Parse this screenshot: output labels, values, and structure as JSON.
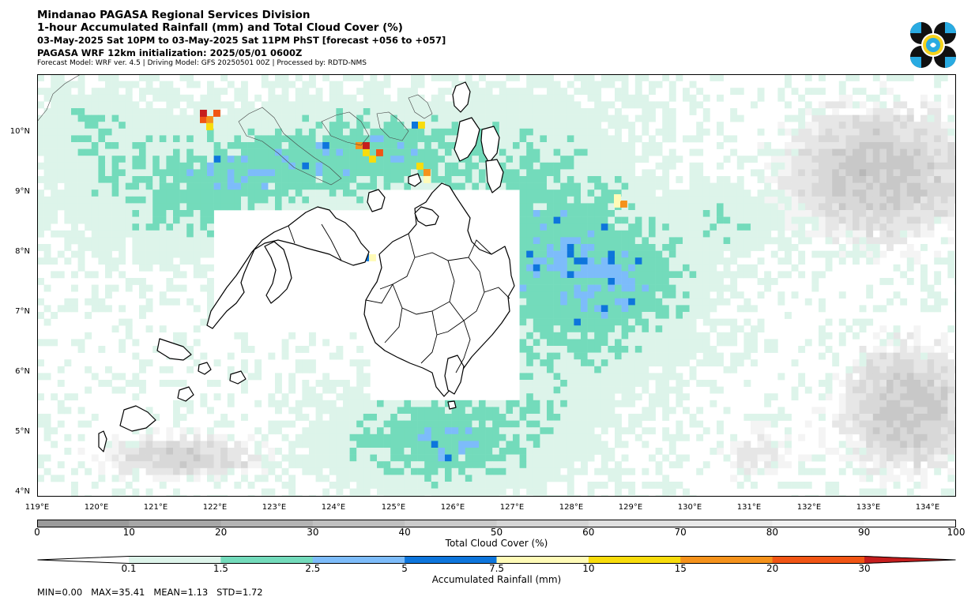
{
  "header": {
    "line1": "Mindanao PAGASA Regional Services Division",
    "line2": "1-hour Accumulated Rainfall (mm) and Total Cloud Cover (%)",
    "line3": "03-May-2025 Sat 10PM to 03-May-2025 Sat 11PM PhST [forecast +056 to +057]",
    "line4": "PAGASA WRF 12km initialization: 2025/05/01 0600Z",
    "line5": "Forecast Model: WRF ver. 4.5 | Driving Model: GFS 20250501 00Z | Processed by: RDTD-NMS"
  },
  "map": {
    "lat_labels": [
      "10°N",
      "9°N",
      "8°N",
      "7°N",
      "6°N",
      "5°N",
      "4°N"
    ],
    "lon_labels": [
      "119°E",
      "120°E",
      "121°E",
      "122°E",
      "123°E",
      "124°E",
      "125°E",
      "126°E",
      "127°E",
      "128°E",
      "129°E",
      "130°E",
      "131°E",
      "132°E",
      "133°E",
      "134°E"
    ],
    "extent": {
      "lon_min": 119.0,
      "lon_max": 134.48,
      "lat_min": 3.9,
      "lat_max": 11.0
    }
  },
  "cloud_colorbar": {
    "title": "Total Cloud Cover (%)",
    "ticks": [
      "0",
      "10",
      "20",
      "30",
      "40",
      "50",
      "60",
      "70",
      "80",
      "90",
      "100"
    ],
    "colors": [
      "#9b9b9b",
      "#a7a7a7",
      "#b4b4b4",
      "#c0c0c0",
      "#cbcbcb",
      "#d6d6d6",
      "#e0e0e0",
      "#e9e9e9",
      "#f1f1f1",
      "#f8f8f8"
    ]
  },
  "rain_colorbar": {
    "title": "Accumulated Rainfall (mm)",
    "ticks": [
      "0.1",
      "1.5",
      "2.5",
      "5",
      "7.5",
      "10",
      "15",
      "20",
      "30"
    ],
    "colors": [
      "#ddf4ea",
      "#73dbbb",
      "#7dbcfa",
      "#0d75dc",
      "#fffbb7",
      "#f8dc0c",
      "#f5921b",
      "#f15514",
      "#c61d1d"
    ]
  },
  "stats": "MIN=0.00   MAX=35.41   MEAN=1.13   STD=1.72"
}
